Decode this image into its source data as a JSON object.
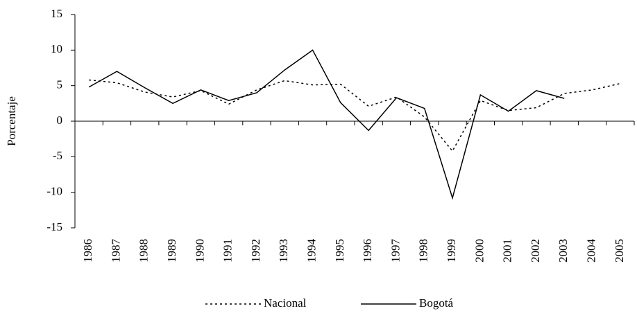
{
  "chart_data": {
    "type": "line",
    "y_label": "Porcentaje",
    "categories": [
      "1986",
      "1987",
      "1988",
      "1989",
      "1990",
      "1991",
      "1992",
      "1993",
      "1994",
      "1995",
      "1996",
      "1997",
      "1998",
      "1999",
      "2000",
      "2001",
      "2002",
      "2003",
      "2004",
      "2005"
    ],
    "series": [
      {
        "name": "Nacional",
        "color": "#000000",
        "dash": "3,4",
        "values": [
          5.8,
          5.4,
          4.1,
          3.4,
          4.3,
          2.4,
          4.4,
          5.7,
          5.1,
          5.2,
          2.1,
          3.4,
          0.6,
          -4.2,
          2.9,
          1.5,
          1.9,
          3.9,
          4.4,
          5.3
        ]
      },
      {
        "name": "Bogotá",
        "color": "#000000",
        "dash": "none",
        "values": [
          4.8,
          7.0,
          4.7,
          2.5,
          4.4,
          2.9,
          4.0,
          7.2,
          10.0,
          2.6,
          -1.3,
          3.3,
          1.8,
          -10.8,
          3.7,
          1.4,
          4.3,
          3.2,
          null,
          null
        ]
      }
    ],
    "ylim": [
      -15,
      15
    ],
    "yticks": [
      -15,
      -10,
      -5,
      0,
      5,
      10,
      15
    ],
    "grid": false
  }
}
